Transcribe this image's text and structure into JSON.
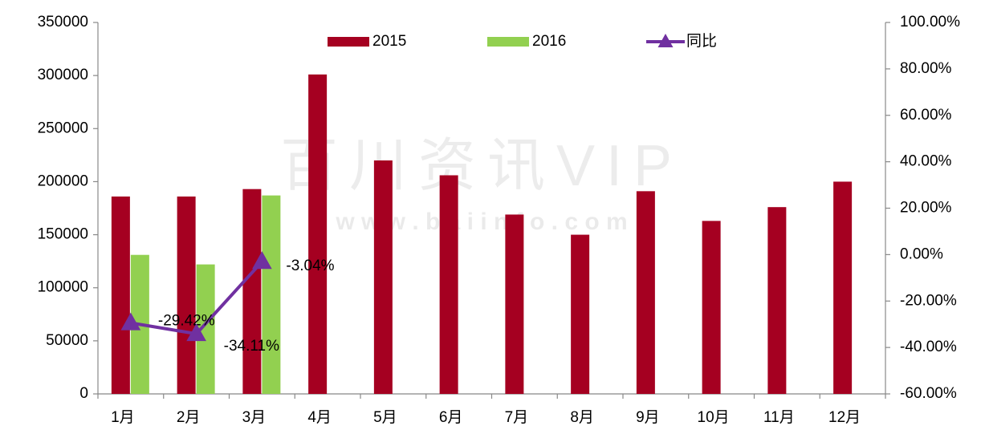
{
  "chart_data": {
    "type": "bar",
    "categories": [
      "1月",
      "2月",
      "3月",
      "4月",
      "5月",
      "6月",
      "7月",
      "8月",
      "9月",
      "10月",
      "11月",
      "12月"
    ],
    "series": [
      {
        "name": "2015",
        "color": "#a50021",
        "values": [
          186000,
          186000,
          193000,
          301000,
          220000,
          206000,
          169000,
          150000,
          191000,
          163000,
          176000,
          200000
        ]
      },
      {
        "name": "2016",
        "color": "#92d050",
        "values": [
          131000,
          122000,
          187000,
          null,
          null,
          null,
          null,
          null,
          null,
          null,
          null,
          null
        ]
      },
      {
        "name": "同比",
        "color": "#7030a0",
        "type": "line",
        "axis": "y2",
        "values": [
          -29.42,
          -34.11,
          -3.04,
          null,
          null,
          null,
          null,
          null,
          null,
          null,
          null,
          null
        ],
        "value_labels": [
          "-29.42%",
          "-34.11%",
          "-3.04%",
          null,
          null,
          null,
          null,
          null,
          null,
          null,
          null,
          null
        ]
      }
    ],
    "ylim": [
      0,
      350000
    ],
    "yticks": [
      0,
      50000,
      100000,
      150000,
      200000,
      250000,
      300000,
      350000
    ],
    "y2lim": [
      -60,
      100
    ],
    "y2ticks": [
      {
        "value": -60,
        "label": "-60.00%"
      },
      {
        "value": -40,
        "label": "-40.00%"
      },
      {
        "value": -20,
        "label": "-20.00%"
      },
      {
        "value": 0,
        "label": "0.00%"
      },
      {
        "value": 20,
        "label": "20.00%"
      },
      {
        "value": 40,
        "label": "40.00%"
      },
      {
        "value": 60,
        "label": "60.00%"
      },
      {
        "value": 80,
        "label": "80.00%"
      },
      {
        "value": 100,
        "label": "100.00%"
      }
    ],
    "grid": false,
    "legend": "top",
    "watermark": [
      "百川资讯VIP",
      "w w w . b a i i n f o . c o m"
    ]
  }
}
